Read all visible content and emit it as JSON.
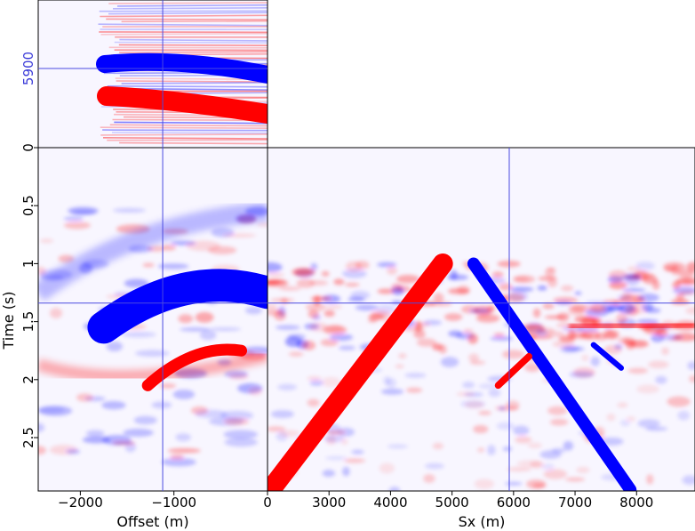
{
  "chart_data": {
    "type": "heatmap",
    "description_panels": [
      "offset-gather",
      "source-position-section",
      "time-slice"
    ],
    "colors": {
      "positive": "#ff0000",
      "negative": "#0000ff",
      "background": "#f8f6ff",
      "crosshair": "#4a4ae0"
    },
    "time_axis": {
      "label": "Time (s)",
      "ticks": [
        "0.5",
        "1",
        "1.5",
        "2",
        "2.5"
      ],
      "tick_values": [
        0.5,
        1,
        1.5,
        2,
        2.5
      ],
      "range": [
        0,
        2.96
      ]
    },
    "offset_axis": {
      "label": "Offset (m)",
      "ticks": [
        "−2000",
        "−1000",
        "0"
      ],
      "tick_values": [
        -2000,
        -1000,
        0
      ],
      "range": [
        -2450,
        0
      ]
    },
    "sx_axis": {
      "label": "Sx (m)",
      "ticks": [
        "3000",
        "4000",
        "5000",
        "6000",
        "7000",
        "8000"
      ],
      "tick_values": [
        3000,
        4000,
        5000,
        6000,
        7000,
        8000
      ],
      "range": [
        2000,
        8950
      ]
    },
    "top_axis": {
      "ticks": [
        "0"
      ],
      "tick_values": [
        0
      ]
    },
    "crosshair": {
      "offset": -1120,
      "time": 1.34,
      "sx": 5930,
      "label": "5900"
    },
    "events": {
      "offset_panel": [
        {
          "polarity": "negative",
          "from": [
            -1750,
            1.55
          ],
          "to": [
            0,
            1.25
          ],
          "thickness_s": 0.28
        },
        {
          "polarity": "positive",
          "from": [
            -1280,
            2.05
          ],
          "to": [
            -280,
            1.75
          ],
          "thickness_s": 0.1
        }
      ],
      "sx_panel": [
        {
          "polarity": "positive",
          "from": [
            2050,
            2.95
          ],
          "to": [
            4850,
            1.0
          ],
          "thickness_m": 330
        },
        {
          "polarity": "negative",
          "from": [
            5350,
            1.0
          ],
          "to": [
            7900,
            2.95
          ],
          "thickness_m": 200
        },
        {
          "polarity": "positive",
          "from": [
            5750,
            2.05
          ],
          "to": [
            6250,
            1.8
          ],
          "thickness_m": 110
        },
        {
          "polarity": "negative",
          "from": [
            7300,
            1.7
          ],
          "to": [
            7750,
            1.9
          ],
          "thickness_m": 90
        }
      ]
    }
  }
}
